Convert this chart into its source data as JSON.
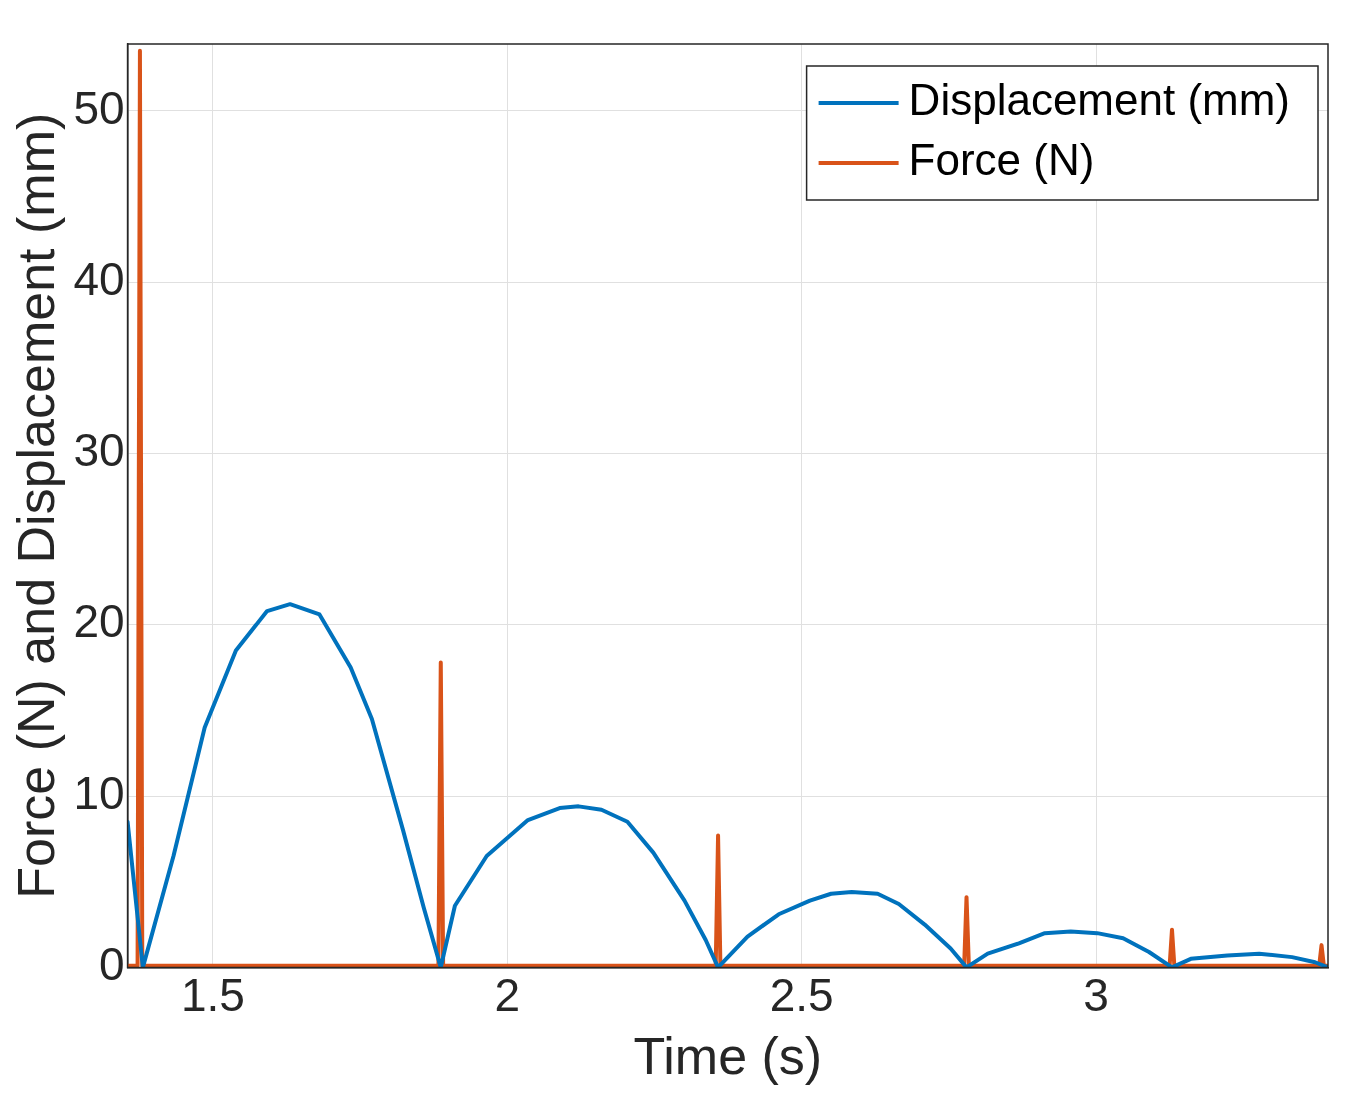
{
  "chart_data": {
    "type": "line",
    "xlabel": "Time (s)",
    "ylabel": "Force (N) and Displacement (mm)",
    "xlim": [
      1.355,
      3.394
    ],
    "ylim": [
      0,
      53.9
    ],
    "xticks": [
      1.5,
      2,
      2.5,
      3
    ],
    "yticks": [
      0,
      10,
      20,
      30,
      40,
      50
    ],
    "grid": true,
    "legend": "top right",
    "marker": "none",
    "line_style": "solid",
    "series": [
      {
        "name": "Displacement (mm)",
        "color": "#0072bd",
        "x": [
          1.355,
          1.381,
          1.433,
          1.486,
          1.539,
          1.592,
          1.631,
          1.681,
          1.734,
          1.77,
          1.823,
          1.858,
          1.887,
          1.911,
          1.965,
          2.035,
          2.089,
          2.121,
          2.16,
          2.204,
          2.248,
          2.301,
          2.337,
          2.358,
          2.408,
          2.461,
          2.514,
          2.55,
          2.585,
          2.629,
          2.665,
          2.709,
          2.753,
          2.78,
          2.816,
          2.869,
          2.913,
          2.957,
          3.002,
          3.046,
          3.09,
          3.129,
          3.161,
          3.223,
          3.277,
          3.333,
          3.372,
          3.394
        ],
        "values": [
          8.5,
          0,
          6.5,
          14,
          18.5,
          20.8,
          21.2,
          20.6,
          17.5,
          14.5,
          8,
          3.5,
          0,
          3.6,
          6.5,
          8.6,
          9.3,
          9.4,
          9.2,
          8.5,
          6.7,
          3.9,
          1.6,
          0,
          1.8,
          3.1,
          3.9,
          4.3,
          4.4,
          4.3,
          3.7,
          2.5,
          1.1,
          0,
          0.8,
          1.4,
          2,
          2.1,
          2,
          1.7,
          0.9,
          0,
          0.5,
          0.7,
          0.8,
          0.6,
          0.3,
          0
        ]
      },
      {
        "name": "Force (N)",
        "color": "#d95319",
        "x": [
          1.355,
          1.372,
          1.376,
          1.38,
          1.883,
          1.887,
          1.891,
          2.354,
          2.358,
          2.362,
          2.776,
          2.78,
          2.784,
          3.125,
          3.129,
          3.133,
          3.379,
          3.383,
          3.387,
          3.394
        ],
        "values": [
          0.1,
          0.1,
          53.5,
          0.1,
          0.1,
          17.8,
          0.1,
          0.1,
          7.7,
          0.1,
          0.1,
          4.1,
          0.1,
          0.1,
          2.2,
          0.1,
          0.1,
          1.3,
          0.1,
          0.1
        ]
      }
    ]
  }
}
